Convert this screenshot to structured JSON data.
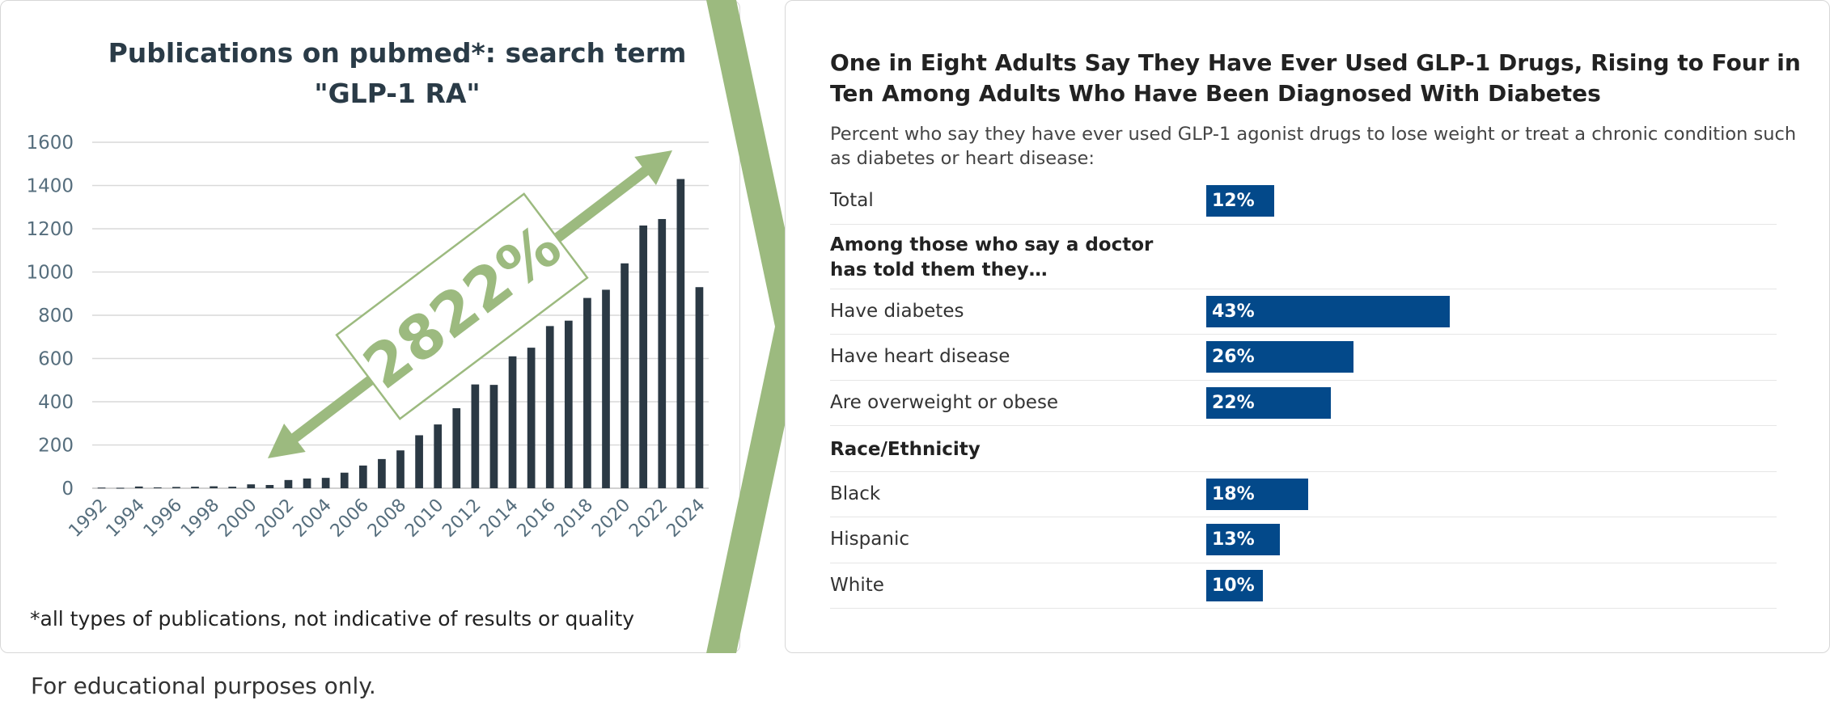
{
  "left_chart": {
    "title": "Publications on pubmed*: search term \"GLP-1 RA\"",
    "footnote": "*all types of publications, not indicative of results or quality",
    "annotation": "2822%",
    "colors": {
      "bar": "#2b3944",
      "arrow": "#9cba7f",
      "grid": "#d9d9d9",
      "axis_text": "#566e7d"
    }
  },
  "right_chart": {
    "title": "One in Eight Adults Say They Have Ever Used GLP-1 Drugs, Rising to Four in Ten Among Adults Who Have Been Diagnosed With Diabetes",
    "subtitle": "Percent who say they have ever used GLP-1 agonist drugs to lose weight or treat a chronic condition such as diabetes or heart disease:",
    "colors": {
      "bar": "#03498a",
      "bar_text": "#ffffff"
    }
  },
  "bottom_note": "For educational purposes only.",
  "chart_data": [
    {
      "type": "bar",
      "title": "Publications on pubmed*: search term \"GLP-1 RA\"",
      "categories": [
        "1992",
        "1993",
        "1994",
        "1995",
        "1996",
        "1997",
        "1998",
        "1999",
        "2000",
        "2001",
        "2002",
        "2003",
        "2004",
        "2005",
        "2006",
        "2007",
        "2008",
        "2009",
        "2010",
        "2011",
        "2012",
        "2013",
        "2014",
        "2015",
        "2016",
        "2017",
        "2018",
        "2019",
        "2020",
        "2021",
        "2022",
        "2023",
        "2024"
      ],
      "tick_labels": [
        "1992",
        "1994",
        "1996",
        "1998",
        "2000",
        "2002",
        "2004",
        "2006",
        "2008",
        "2010",
        "2012",
        "2014",
        "2016",
        "2018",
        "2020",
        "2022",
        "2024"
      ],
      "values": [
        3,
        2,
        8,
        4,
        6,
        7,
        9,
        7,
        18,
        15,
        38,
        45,
        48,
        72,
        105,
        135,
        175,
        245,
        295,
        370,
        480,
        478,
        610,
        650,
        750,
        775,
        880,
        918,
        1040,
        1215,
        1245,
        1430,
        930
      ],
      "ylim": [
        0,
        1600
      ],
      "yticks": [
        0,
        200,
        400,
        600,
        800,
        1000,
        1200,
        1400,
        1600
      ],
      "grid": true,
      "annotation": "2822%"
    },
    {
      "type": "bar",
      "orientation": "horizontal",
      "title": "One in Eight Adults Say They Have Ever Used GLP-1 Drugs, Rising to Four in Ten Among Adults Who Have Been Diagnosed With Diabetes",
      "rows": [
        {
          "label": "Total",
          "value": 12,
          "display": "12%"
        },
        {
          "label": "Among those who say a doctor has told them they…",
          "header": true
        },
        {
          "label": "Have diabetes",
          "value": 43,
          "display": "43%"
        },
        {
          "label": "Have heart disease",
          "value": 26,
          "display": "26%"
        },
        {
          "label": "Are overweight or obese",
          "value": 22,
          "display": "22%"
        },
        {
          "label": "Race/Ethnicity",
          "header": true
        },
        {
          "label": "Black",
          "value": 18,
          "display": "18%"
        },
        {
          "label": "Hispanic",
          "value": 13,
          "display": "13%"
        },
        {
          "label": "White",
          "value": 10,
          "display": "10%"
        }
      ]
    }
  ]
}
